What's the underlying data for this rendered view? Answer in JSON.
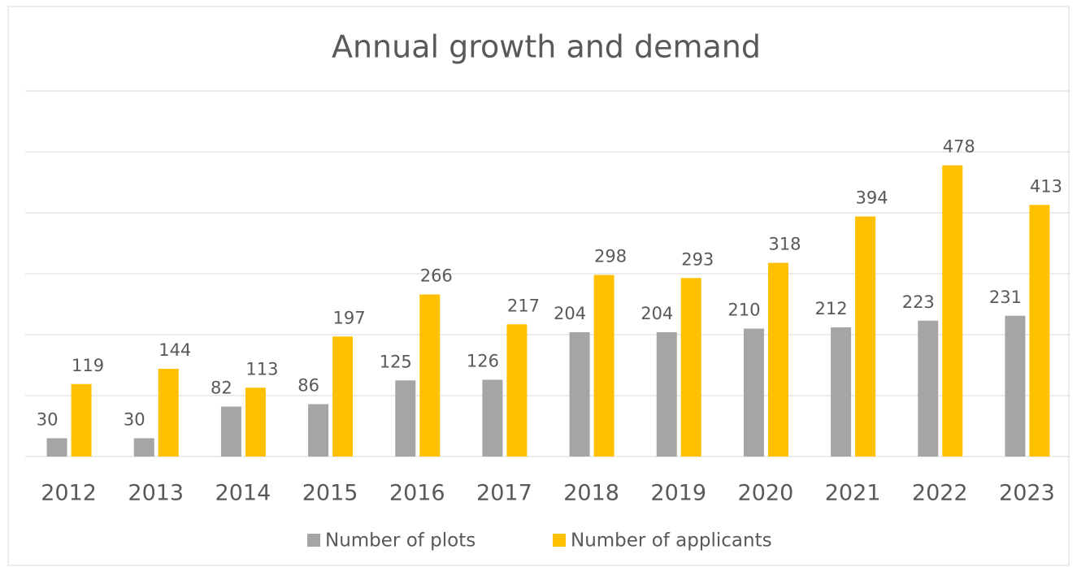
{
  "chart_data": {
    "type": "bar",
    "title": "Annual growth and demand",
    "categories": [
      "2012",
      "2013",
      "2014",
      "2015",
      "2016",
      "2017",
      "2018",
      "2019",
      "2020",
      "2021",
      "2022",
      "2023"
    ],
    "series": [
      {
        "name": "Number of plots",
        "color": "#a5a5a5",
        "values": [
          30,
          30,
          82,
          86,
          125,
          126,
          204,
          204,
          210,
          212,
          223,
          231
        ]
      },
      {
        "name": "Number of applicants",
        "color": "#ffc000",
        "values": [
          119,
          144,
          113,
          197,
          266,
          217,
          298,
          293,
          318,
          394,
          478,
          413
        ]
      }
    ],
    "ylim": [
      0,
      600
    ],
    "yticks": [
      0,
      100,
      200,
      300,
      400,
      500,
      600
    ],
    "grid": true,
    "legend": "bottom"
  }
}
